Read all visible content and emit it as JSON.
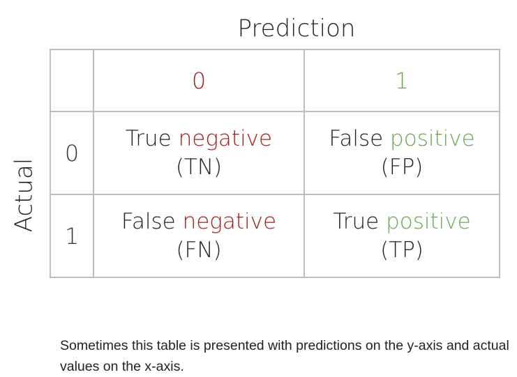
{
  "colors": {
    "negative": "#a61b1b",
    "positive": "#6aa84f",
    "text": "#222222",
    "grid": "#bdbdbd"
  },
  "matrix": {
    "column_axis_label": "Prediction",
    "row_axis_label": "Actual",
    "column_headers": [
      "0",
      "1"
    ],
    "row_headers": [
      "0",
      "1"
    ],
    "cells": {
      "tn": {
        "word1": "True",
        "word2": "negative",
        "abbr": "(TN)"
      },
      "fp": {
        "word1": "False",
        "word2": "positive",
        "abbr": "(FP)"
      },
      "fn": {
        "word1": "False",
        "word2": "negative",
        "abbr": "(FN)"
      },
      "tp": {
        "word1": "True",
        "word2": "positive",
        "abbr": "(TP)"
      }
    }
  },
  "footnote": "Sometimes this table is presented with predictions on the y-axis and actual values on the x-axis."
}
